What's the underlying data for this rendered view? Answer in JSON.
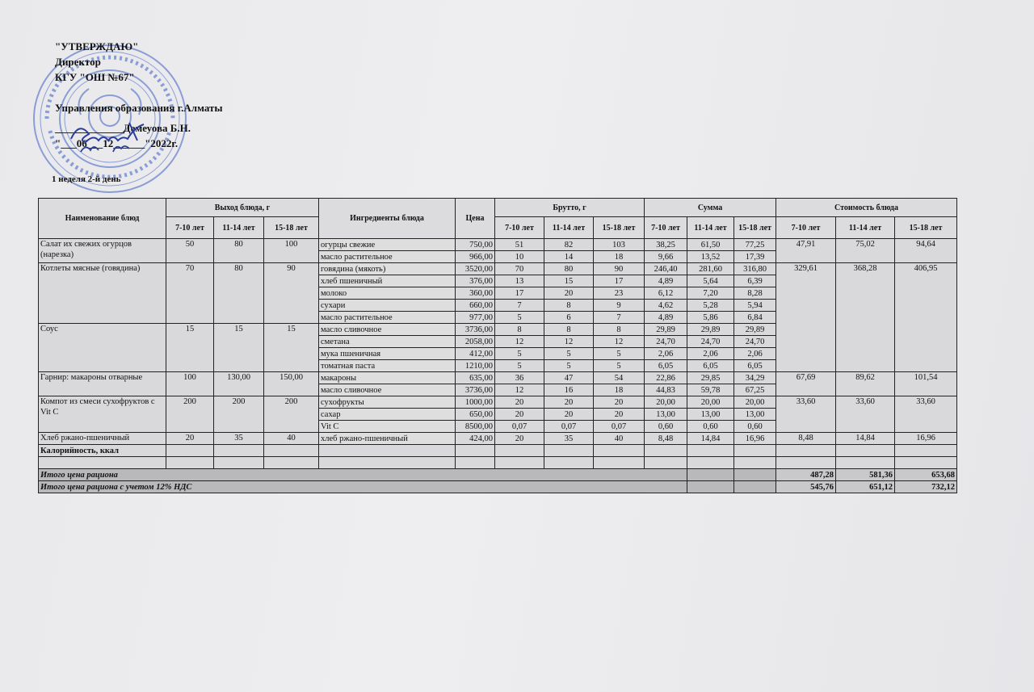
{
  "approval": {
    "title": "\"УТВЕРЖДАЮ\"",
    "position": "Директор",
    "org": "КГУ \"ОШ №67\"",
    "dept": "Управления образования г.Алматы",
    "signer": "_____________Демеуова Б.Н.",
    "date": "\"___06___12______\"2022г."
  },
  "stamp_color": "#3b5fc4",
  "week_day": "1 неделя 2-й день",
  "headers": {
    "dish": "Наименование блюд",
    "yield": "Выход блюда, г",
    "ingredients": "Ингредиенты блюда",
    "price": "Цена",
    "brutto": "Брутто, г",
    "sum": "Сумма",
    "cost": "Стоимость блюда",
    "ages": [
      "7-10 лет",
      "11-14 лет",
      "15-18 лет"
    ]
  },
  "dishes": [
    {
      "name": "Салат их свежих огурцов (нарезка)",
      "yield": [
        "50",
        "80",
        "100"
      ],
      "cost": [
        "47,91",
        "75,02",
        "94,64"
      ],
      "ingredients": [
        {
          "name": "огурцы свежие",
          "price": "750,00",
          "brutto": [
            "51",
            "82",
            "103"
          ],
          "sum": [
            "38,25",
            "61,50",
            "77,25"
          ]
        },
        {
          "name": "масло растительное",
          "price": "966,00",
          "brutto": [
            "10",
            "14",
            "18"
          ],
          "sum": [
            "9,66",
            "13,52",
            "17,39"
          ]
        }
      ]
    },
    {
      "name": "Котлеты мясные (говядина)",
      "yield": [
        "70",
        "80",
        "90"
      ],
      "cost": [
        "329,61",
        "368,28",
        "406,95"
      ],
      "cost_rows": 9,
      "ingredients": [
        {
          "name": "говядина (мякоть)",
          "price": "3520,00",
          "brutto": [
            "70",
            "80",
            "90"
          ],
          "sum": [
            "246,40",
            "281,60",
            "316,80"
          ]
        },
        {
          "name": "хлеб пшеничный",
          "price": "376,00",
          "brutto": [
            "13",
            "15",
            "17"
          ],
          "sum": [
            "4,89",
            "5,64",
            "6,39"
          ]
        },
        {
          "name": "молоко",
          "price": "360,00",
          "brutto": [
            "17",
            "20",
            "23"
          ],
          "sum": [
            "6,12",
            "7,20",
            "8,28"
          ]
        },
        {
          "name": "сухари",
          "price": "660,00",
          "brutto": [
            "7",
            "8",
            "9"
          ],
          "sum": [
            "4,62",
            "5,28",
            "5,94"
          ]
        },
        {
          "name": "масло растительное",
          "price": "977,00",
          "brutto": [
            "5",
            "6",
            "7"
          ],
          "sum": [
            "4,89",
            "5,86",
            "6,84"
          ]
        }
      ]
    },
    {
      "name": "Соус",
      "yield": [
        "15",
        "15",
        "15"
      ],
      "cost": null,
      "ingredients": [
        {
          "name": "масло сливочное",
          "price": "3736,00",
          "brutto": [
            "8",
            "8",
            "8"
          ],
          "sum": [
            "29,89",
            "29,89",
            "29,89"
          ]
        },
        {
          "name": "сметана",
          "price": "2058,00",
          "brutto": [
            "12",
            "12",
            "12"
          ],
          "sum": [
            "24,70",
            "24,70",
            "24,70"
          ]
        },
        {
          "name": "мука пшеничная",
          "price": "412,00",
          "brutto": [
            "5",
            "5",
            "5"
          ],
          "sum": [
            "2,06",
            "2,06",
            "2,06"
          ]
        },
        {
          "name": "томатная паста",
          "price": "1210,00",
          "brutto": [
            "5",
            "5",
            "5"
          ],
          "sum": [
            "6,05",
            "6,05",
            "6,05"
          ]
        }
      ]
    },
    {
      "name": "Гарнир: макароны отварные",
      "yield": [
        "100",
        "130,00",
        "150,00"
      ],
      "cost": [
        "67,69",
        "89,62",
        "101,54"
      ],
      "ingredients": [
        {
          "name": "макароны",
          "price": "635,00",
          "brutto": [
            "36",
            "47",
            "54"
          ],
          "sum": [
            "22,86",
            "29,85",
            "34,29"
          ]
        },
        {
          "name": "масло сливочное",
          "price": "3736,00",
          "brutto": [
            "12",
            "16",
            "18"
          ],
          "sum": [
            "44,83",
            "59,78",
            "67,25"
          ]
        }
      ]
    },
    {
      "name": "Компот из смеси сухофруктов с Vit C",
      "yield": [
        "200",
        "200",
        "200"
      ],
      "cost": [
        "33,60",
        "33,60",
        "33,60"
      ],
      "ingredients": [
        {
          "name": "сухофрукты",
          "price": "1000,00",
          "brutto": [
            "20",
            "20",
            "20"
          ],
          "sum": [
            "20,00",
            "20,00",
            "20,00"
          ]
        },
        {
          "name": "сахар",
          "price": "650,00",
          "brutto": [
            "20",
            "20",
            "20"
          ],
          "sum": [
            "13,00",
            "13,00",
            "13,00"
          ]
        },
        {
          "name": "Vit C",
          "price": "8500,00",
          "brutto": [
            "0,07",
            "0,07",
            "0,07"
          ],
          "sum": [
            "0,60",
            "0,60",
            "0,60"
          ]
        }
      ]
    },
    {
      "name": "Хлеб ржано-пшеничный",
      "yield": [
        "20",
        "35",
        "40"
      ],
      "cost": [
        "8,48",
        "14,84",
        "16,96"
      ],
      "ingredients": [
        {
          "name": "хлеб ржано-пшеничный",
          "price": "424,00",
          "brutto": [
            "20",
            "35",
            "40"
          ],
          "sum": [
            "8,48",
            "14,84",
            "16,96"
          ]
        }
      ]
    }
  ],
  "calories_label": "Калорийность, ккал",
  "totals": [
    {
      "label": "Итого цена рациона",
      "values": [
        "487,28",
        "581,36",
        "653,68"
      ]
    },
    {
      "label": "Итого цена рациона с учетом 12% НДС",
      "values": [
        "545,76",
        "651,12",
        "732,12"
      ]
    }
  ]
}
